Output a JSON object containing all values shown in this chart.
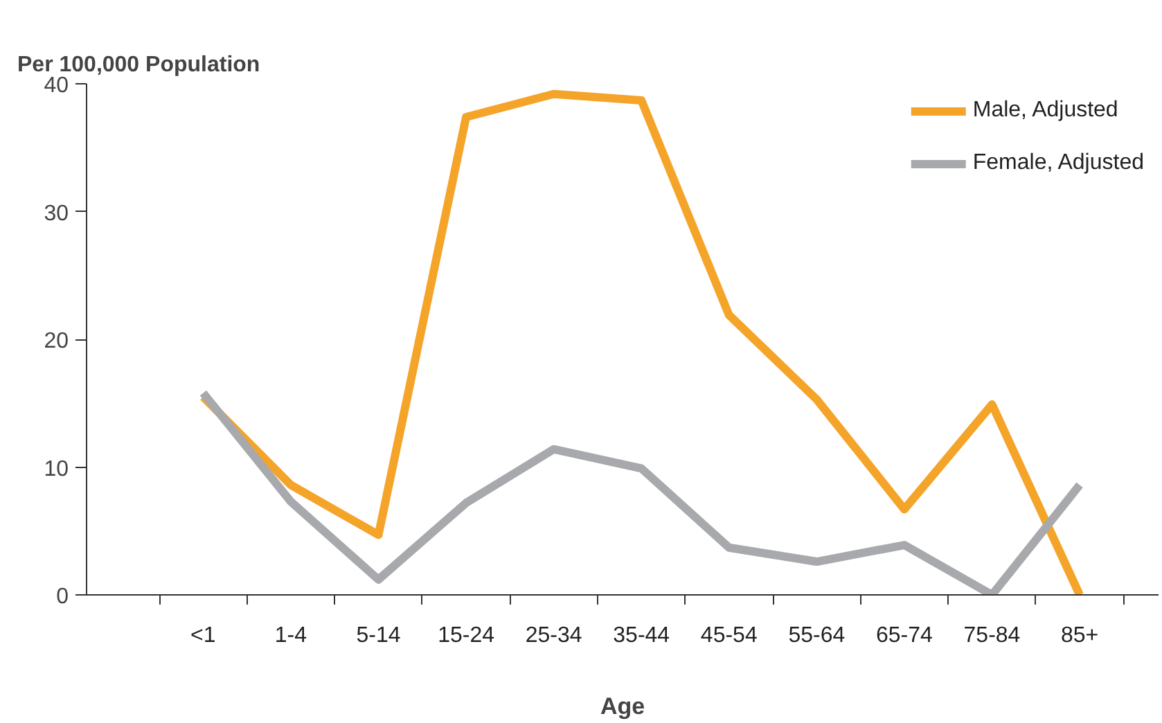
{
  "chart_data": {
    "type": "line",
    "title": "Per 100,000 Population",
    "xlabel": "Age",
    "categories": [
      "<1",
      "1-4",
      "5-14",
      "15-24",
      "25-34",
      "35-44",
      "45-54",
      "55-64",
      "65-74",
      "75-84",
      "85+"
    ],
    "series": [
      {
        "name": "Male, Adjusted",
        "color": "#f5a42a",
        "values": [
          15.5,
          8.6,
          4.7,
          37.4,
          39.2,
          38.7,
          21.9,
          15.3,
          6.7,
          14.9,
          0
        ]
      },
      {
        "name": "Female, Adjusted",
        "color": "#a7a9ac",
        "values": [
          15.8,
          7.3,
          1.2,
          7.2,
          11.4,
          9.9,
          3.7,
          2.6,
          3.9,
          0,
          8.6
        ]
      }
    ],
    "ylim": [
      0,
      40
    ],
    "yticks": [
      0,
      10,
      20,
      30,
      40
    ],
    "grid": false,
    "legend": "top right",
    "marker": "none",
    "line_style": "solid"
  }
}
